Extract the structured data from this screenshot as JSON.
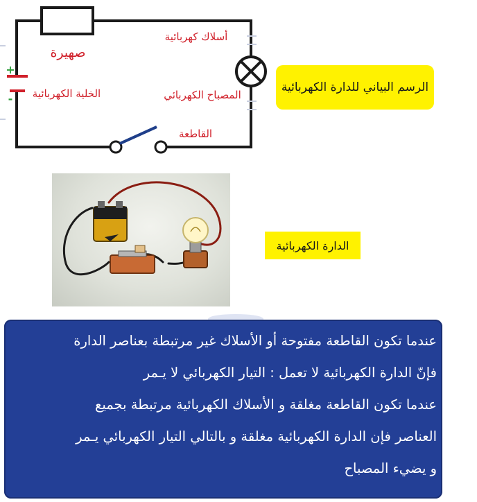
{
  "schematic": {
    "labels": {
      "wires": "أسلاك كهربائية",
      "fuse": "صهيرة",
      "cell": "الخلية الكهربائية",
      "lamp": "المصباح الكهربائي",
      "switch": "القاطعة",
      "plus": "+",
      "minus": "-"
    },
    "colors": {
      "label": "#d0202a",
      "wire": "#1a1a1a",
      "switch_blade": "#1f3f8a",
      "terminal_plus": "#2e9e3a",
      "terminal_minus": "#2e9e3a"
    }
  },
  "captions": {
    "schematic_title": "الرسم البياني للدارة الكهربائية",
    "photo_title": "الدارة الكهربائية",
    "highlight_color": "#fff200"
  },
  "explanation": {
    "lines": [
      "عندما تكون القاطعة مفتوحة أو الأسلاك غير مرتبطة بعناصر الدارة",
      "فإنّ الدارة الكهربائية لا تعمل : التيار الكهربائي  لا يـمر",
      "عندما تكون القاطعة مغلقة و الأسلاك الكهربائية مرتبطة بجميع",
      "العناصر فإن الدارة الكهربائية مغلقة و بالتالي التيار الكهربائي يـمر",
      "و يضيء المصباح"
    ],
    "background": "#233f96",
    "text_color": "#ffffff"
  }
}
